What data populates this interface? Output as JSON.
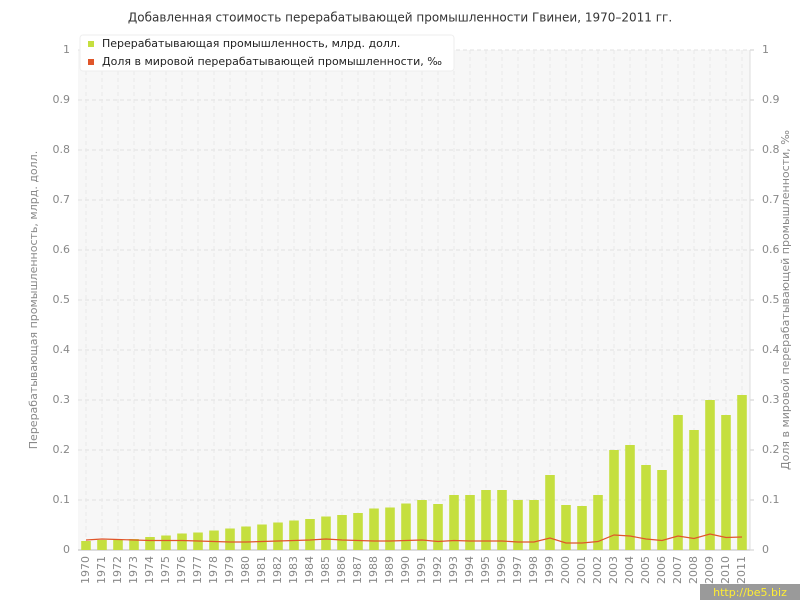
{
  "chart_data": {
    "type": "bar_line",
    "title": "Добавленная стоимость перерабатывающей промышленности Гвинеи, 1970–2011 гг.",
    "y_label": "Перерабатывающая промышленность, млрд. долл.",
    "y2_label": "Доля в мировой перерабатывающей промышленности, ‰",
    "watermark": "http://be5.biz",
    "categories": [
      "1970",
      "1971",
      "1972",
      "1973",
      "1974",
      "1975",
      "1976",
      "1977",
      "1978",
      "1979",
      "1980",
      "1981",
      "1982",
      "1983",
      "1984",
      "1985",
      "1986",
      "1987",
      "1988",
      "1989",
      "1990",
      "1991",
      "1992",
      "1993",
      "1994",
      "1995",
      "1996",
      "1997",
      "1998",
      "1999",
      "2000",
      "2001",
      "2002",
      "2003",
      "2004",
      "2005",
      "2006",
      "2007",
      "2008",
      "2009",
      "2010",
      "2011"
    ],
    "series": [
      {
        "name": "Перерабатывающая промышленность, млрд. долл.",
        "type": "bar",
        "color": "#c5df3f",
        "values": [
          0.018,
          0.02,
          0.02,
          0.022,
          0.026,
          0.029,
          0.033,
          0.035,
          0.039,
          0.043,
          0.047,
          0.051,
          0.055,
          0.059,
          0.062,
          0.067,
          0.07,
          0.074,
          0.083,
          0.085,
          0.093,
          0.1,
          0.092,
          0.11,
          0.11,
          0.12,
          0.12,
          0.1,
          0.1,
          0.15,
          0.09,
          0.088,
          0.11,
          0.2,
          0.21,
          0.17,
          0.16,
          0.27,
          0.24,
          0.3,
          0.27,
          0.31
        ]
      },
      {
        "name": "Доля в мировой перерабатывающей промышленности, ‰",
        "type": "line",
        "axis": "y2",
        "color": "#e0562a",
        "values": [
          0.02,
          0.022,
          0.021,
          0.02,
          0.019,
          0.019,
          0.019,
          0.018,
          0.017,
          0.016,
          0.016,
          0.017,
          0.018,
          0.019,
          0.02,
          0.022,
          0.02,
          0.019,
          0.018,
          0.018,
          0.019,
          0.02,
          0.017,
          0.019,
          0.018,
          0.018,
          0.018,
          0.016,
          0.016,
          0.024,
          0.014,
          0.014,
          0.017,
          0.03,
          0.028,
          0.022,
          0.019,
          0.028,
          0.023,
          0.032,
          0.025,
          0.026
        ]
      }
    ],
    "ylim": [
      0,
      1
    ],
    "yticks": [
      0,
      0.1,
      0.2,
      0.3,
      0.4,
      0.5,
      0.6,
      0.7,
      0.8,
      0.9,
      1
    ],
    "y2lim": [
      0,
      1
    ],
    "y2ticks": [
      0,
      0.1,
      0.2,
      0.3,
      0.4,
      0.5,
      0.6,
      0.7,
      0.8,
      0.9,
      1
    ],
    "grid": true,
    "legend": "top-left"
  }
}
